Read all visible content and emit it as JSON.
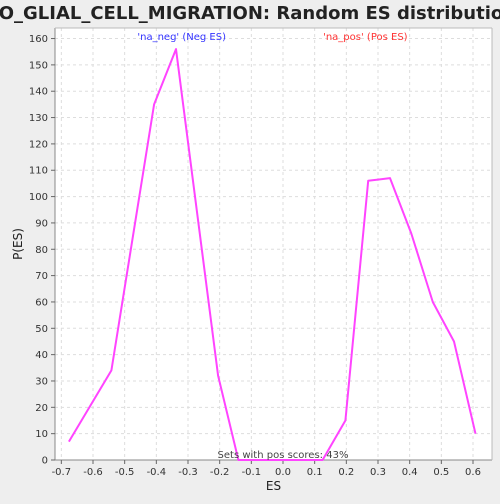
{
  "chart_data": {
    "type": "line",
    "title": "GO_GLIAL_CELL_MIGRATION: Random ES distribution",
    "xlabel": "ES",
    "ylabel": "P(ES)",
    "xlim": [
      -0.72,
      0.66
    ],
    "ylim": [
      0,
      164
    ],
    "x_ticks": [
      -0.7,
      -0.6,
      -0.5,
      -0.4,
      -0.3,
      -0.2,
      -0.1,
      0.0,
      0.1,
      0.2,
      0.3,
      0.4,
      0.5,
      0.6
    ],
    "y_ticks": [
      0,
      10,
      20,
      30,
      40,
      50,
      60,
      70,
      80,
      90,
      100,
      110,
      120,
      130,
      140,
      150,
      160
    ],
    "x_tick_labels": [
      "-0.7",
      "-0.6",
      "-0.5",
      "-0.4",
      "-0.3",
      "-0.2",
      "-0.1",
      "0.0",
      "0.1",
      "0.2",
      "0.3",
      "0.4",
      "0.5",
      "0.6"
    ],
    "y_tick_labels": [
      "0",
      "10",
      "20",
      "30",
      "40",
      "50",
      "60",
      "70",
      "80",
      "90",
      "100",
      "110",
      "120",
      "130",
      "140",
      "150",
      "160"
    ],
    "grid": true,
    "series": [
      {
        "color": "#ff44ff",
        "x": [
          -0.676,
          -0.542,
          -0.407,
          -0.338,
          -0.205,
          -0.141,
          0.125,
          0.197,
          0.269,
          0.338,
          0.405,
          0.473,
          0.54,
          0.608
        ],
        "y": [
          7,
          34,
          135,
          156,
          32,
          0,
          0,
          15,
          106,
          107,
          86,
          60,
          45,
          10
        ]
      }
    ],
    "annotations": {
      "neg_label": "'na_neg' (Neg ES)",
      "neg_color": "#3333ff",
      "pos_label": "'na_pos' (Pos ES)",
      "pos_color": "#ff3333",
      "footer": "Sets with pos scores: 43%"
    }
  }
}
